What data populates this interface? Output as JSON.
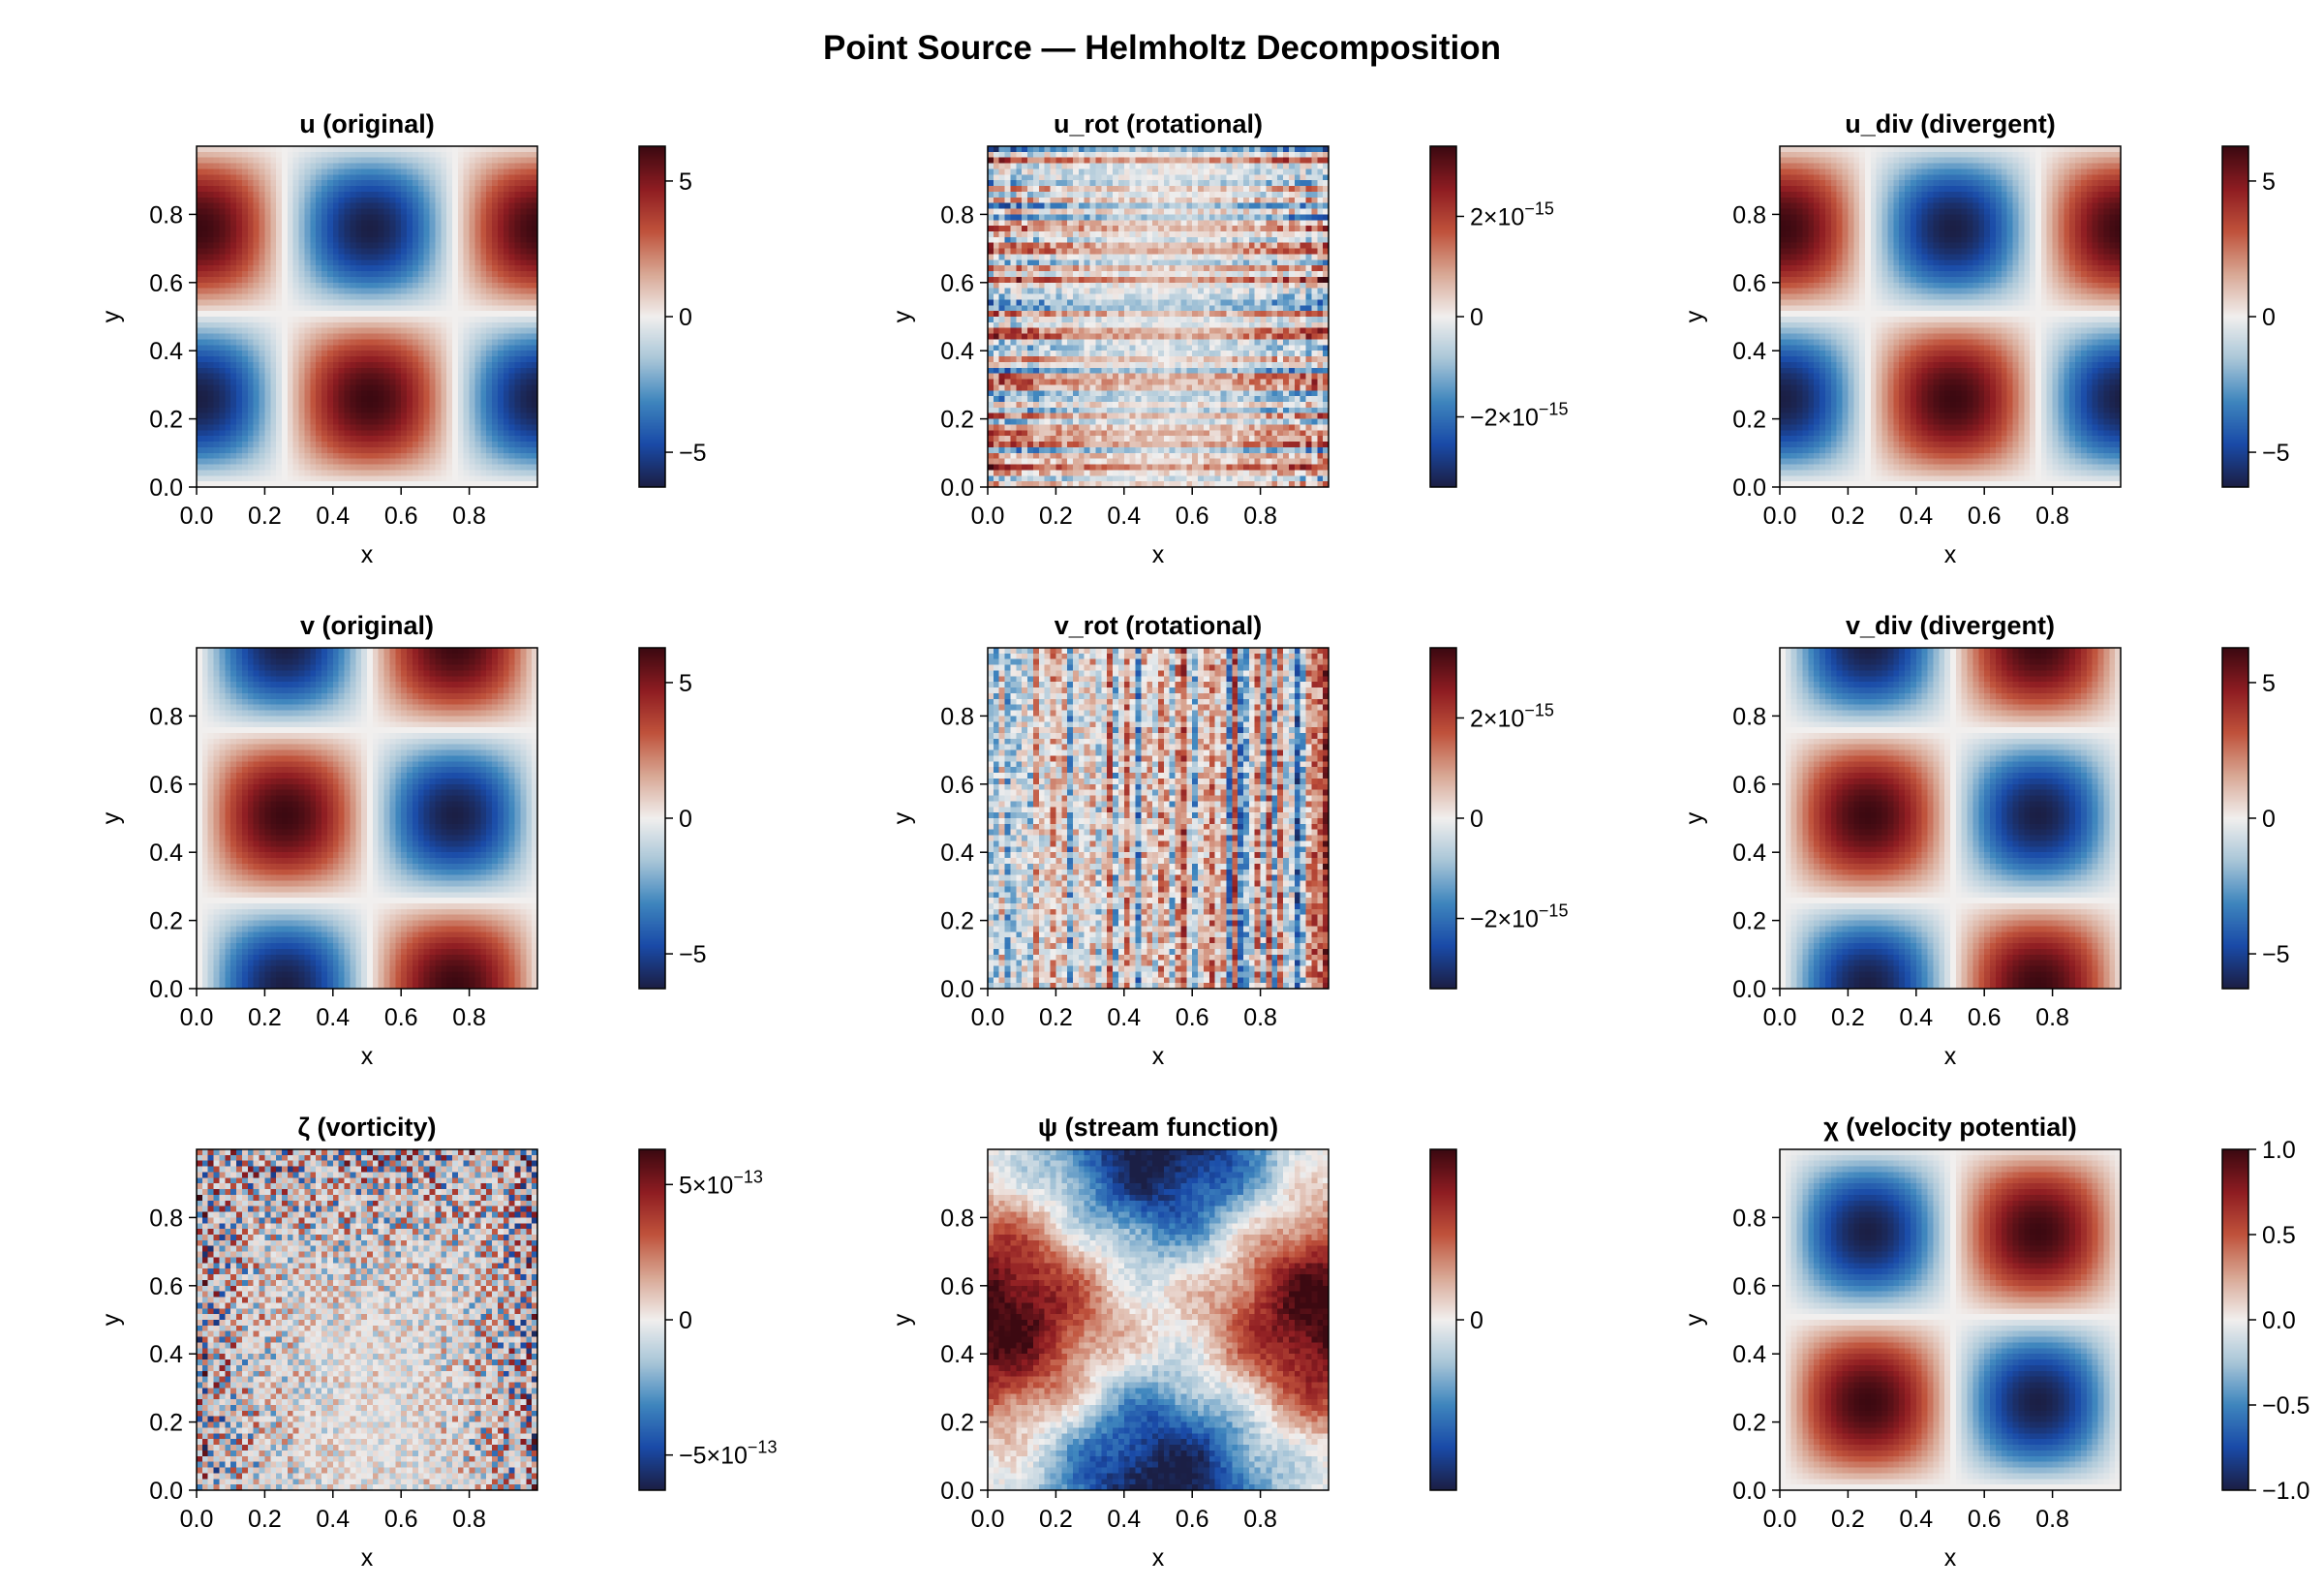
{
  "figure": {
    "title": "Point Source — Helmholtz Decomposition"
  },
  "colormap": {
    "name": "balance",
    "stops": [
      "#1b1f45",
      "#1a4ba8",
      "#3f86be",
      "#a9c6d8",
      "#f1efee",
      "#d9a895",
      "#c0533c",
      "#8f1d22",
      "#3c0911"
    ]
  },
  "chart_data": [
    {
      "type": "heatmap",
      "title": "u (original)",
      "xlabel": "x",
      "ylabel": "y",
      "xlim": [
        0,
        1
      ],
      "ylim": [
        0,
        1
      ],
      "xticks": [
        "0.0",
        "0.2",
        "0.4",
        "0.6",
        "0.8"
      ],
      "yticks": [
        "0.0",
        "0.2",
        "0.4",
        "0.6",
        "0.8"
      ],
      "field": "-2π·cos(2πx)·sin(2πy)",
      "clim": [
        -6.283,
        6.283
      ],
      "colorbar_ticks": [
        {
          "value": 5,
          "label": "5"
        },
        {
          "value": 0,
          "label": "0"
        },
        {
          "value": -5,
          "label": "−5"
        }
      ]
    },
    {
      "type": "heatmap",
      "title": "u_rot (rotational)",
      "xlabel": "x",
      "ylabel": "y",
      "xlim": [
        0,
        1
      ],
      "ylim": [
        0,
        1
      ],
      "xticks": [
        "0.0",
        "0.2",
        "0.4",
        "0.6",
        "0.8"
      ],
      "yticks": [
        "0.0",
        "0.2",
        "0.4",
        "0.6",
        "0.8"
      ],
      "field": "numerical noise, horizontal streaks",
      "clim": [
        -3.4e-15,
        3.4e-15
      ],
      "colorbar_ticks": [
        {
          "value": 2e-15,
          "label": "2×10",
          "exp": "−15"
        },
        {
          "value": 0,
          "label": "0"
        },
        {
          "value": -2e-15,
          "label": "−2×10",
          "exp": "−15"
        }
      ]
    },
    {
      "type": "heatmap",
      "title": "u_div (divergent)",
      "xlabel": "x",
      "ylabel": "y",
      "xlim": [
        0,
        1
      ],
      "ylim": [
        0,
        1
      ],
      "xticks": [
        "0.0",
        "0.2",
        "0.4",
        "0.6",
        "0.8"
      ],
      "yticks": [
        "0.0",
        "0.2",
        "0.4",
        "0.6",
        "0.8"
      ],
      "field": "-2π·cos(2πx)·sin(2πy)",
      "clim": [
        -6.283,
        6.283
      ],
      "colorbar_ticks": [
        {
          "value": 5,
          "label": "5"
        },
        {
          "value": 0,
          "label": "0"
        },
        {
          "value": -5,
          "label": "−5"
        }
      ]
    },
    {
      "type": "heatmap",
      "title": "v (original)",
      "xlabel": "x",
      "ylabel": "y",
      "xlim": [
        0,
        1
      ],
      "ylim": [
        0,
        1
      ],
      "xticks": [
        "0.0",
        "0.2",
        "0.4",
        "0.6",
        "0.8"
      ],
      "yticks": [
        "0.0",
        "0.2",
        "0.4",
        "0.6",
        "0.8"
      ],
      "field": "-2π·sin(2πx)·cos(2πy)",
      "clim": [
        -6.283,
        6.283
      ],
      "colorbar_ticks": [
        {
          "value": 5,
          "label": "5"
        },
        {
          "value": 0,
          "label": "0"
        },
        {
          "value": -5,
          "label": "−5"
        }
      ]
    },
    {
      "type": "heatmap",
      "title": "v_rot (rotational)",
      "xlabel": "x",
      "ylabel": "y",
      "xlim": [
        0,
        1
      ],
      "ylim": [
        0,
        1
      ],
      "xticks": [
        "0.0",
        "0.2",
        "0.4",
        "0.6",
        "0.8"
      ],
      "yticks": [
        "0.0",
        "0.2",
        "0.4",
        "0.6",
        "0.8"
      ],
      "field": "numerical noise, vertical streaks",
      "clim": [
        -3.4e-15,
        3.4e-15
      ],
      "colorbar_ticks": [
        {
          "value": 2e-15,
          "label": "2×10",
          "exp": "−15"
        },
        {
          "value": 0,
          "label": "0"
        },
        {
          "value": -2e-15,
          "label": "−2×10",
          "exp": "−15"
        }
      ]
    },
    {
      "type": "heatmap",
      "title": "v_div (divergent)",
      "xlabel": "x",
      "ylabel": "y",
      "xlim": [
        0,
        1
      ],
      "ylim": [
        0,
        1
      ],
      "xticks": [
        "0.0",
        "0.2",
        "0.4",
        "0.6",
        "0.8"
      ],
      "yticks": [
        "0.0",
        "0.2",
        "0.4",
        "0.6",
        "0.8"
      ],
      "field": "-2π·sin(2πx)·cos(2πy)",
      "clim": [
        -6.283,
        6.283
      ],
      "colorbar_ticks": [
        {
          "value": 5,
          "label": "5"
        },
        {
          "value": 0,
          "label": "0"
        },
        {
          "value": -5,
          "label": "−5"
        }
      ]
    },
    {
      "type": "heatmap",
      "title": "ζ (vorticity)",
      "xlabel": "x",
      "ylabel": "y",
      "xlim": [
        0,
        1
      ],
      "ylim": [
        0,
        1
      ],
      "xticks": [
        "0.0",
        "0.2",
        "0.4",
        "0.6",
        "0.8"
      ],
      "yticks": [
        "0.0",
        "0.2",
        "0.4",
        "0.6",
        "0.8"
      ],
      "field": "numerical noise, checkerboard",
      "clim": [
        -6.3e-13,
        6.3e-13
      ],
      "colorbar_ticks": [
        {
          "value": 5e-13,
          "label": "5×10",
          "exp": "−13"
        },
        {
          "value": 0,
          "label": "0"
        },
        {
          "value": -5e-13,
          "label": "−5×10",
          "exp": "−13"
        }
      ]
    },
    {
      "type": "heatmap",
      "title": "ψ (stream function)",
      "xlabel": "x",
      "ylabel": "y",
      "xlim": [
        0,
        1
      ],
      "ylim": [
        0,
        1
      ],
      "xticks": [
        "0.0",
        "0.2",
        "0.4",
        "0.6",
        "0.8"
      ],
      "yticks": [
        "0.0",
        "0.2",
        "0.4",
        "0.6",
        "0.8"
      ],
      "field": "positive near left/right edges, negative near top/bottom edges, plus noise",
      "clim": [
        -1,
        1
      ],
      "colorbar_ticks": [
        {
          "value": 0,
          "label": "0"
        }
      ]
    },
    {
      "type": "heatmap",
      "title": "χ (velocity potential)",
      "xlabel": "x",
      "ylabel": "y",
      "xlim": [
        0,
        1
      ],
      "ylim": [
        0,
        1
      ],
      "xticks": [
        "0.0",
        "0.2",
        "0.4",
        "0.6",
        "0.8"
      ],
      "yticks": [
        "0.0",
        "0.2",
        "0.4",
        "0.6",
        "0.8"
      ],
      "field": "sin(2πx)·sin(2πy)",
      "clim": [
        -1,
        1
      ],
      "colorbar_ticks": [
        {
          "value": 1,
          "label": "1.0"
        },
        {
          "value": 0.5,
          "label": "0.5"
        },
        {
          "value": 0,
          "label": "0.0"
        },
        {
          "value": -0.5,
          "label": "−0.5"
        },
        {
          "value": -1,
          "label": "−1.0"
        }
      ]
    }
  ]
}
